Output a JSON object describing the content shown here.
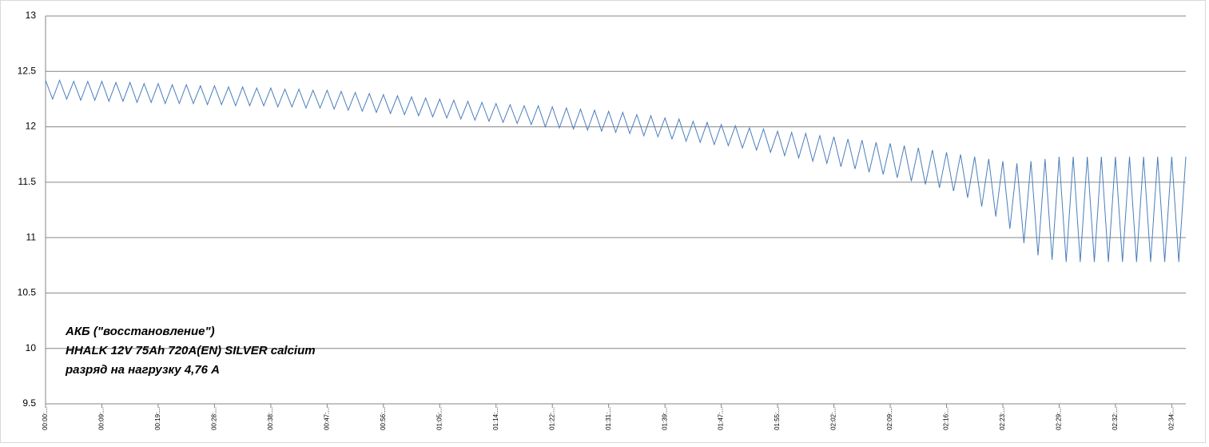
{
  "chart_data": {
    "type": "line",
    "annotation": [
      "АКБ (\"восстановление\")",
      "HHALK 12V 75Ah 720A(EN) SILVER calcium",
      "разряд на нагрузку 4,76 А"
    ],
    "categories": [
      "00:00:...",
      null,
      null,
      null,
      null,
      null,
      null,
      null,
      "00:09:...",
      null,
      null,
      null,
      null,
      null,
      null,
      null,
      "00:19:...",
      null,
      null,
      null,
      null,
      null,
      null,
      null,
      "00:28:...",
      null,
      null,
      null,
      null,
      null,
      null,
      null,
      "00:38:...",
      null,
      null,
      null,
      null,
      null,
      null,
      null,
      "00:47:...",
      null,
      null,
      null,
      null,
      null,
      null,
      null,
      "00:56:...",
      null,
      null,
      null,
      null,
      null,
      null,
      null,
      "01:05:...",
      null,
      null,
      null,
      null,
      null,
      null,
      null,
      "01:14:...",
      null,
      null,
      null,
      null,
      null,
      null,
      null,
      "01:22:...",
      null,
      null,
      null,
      null,
      null,
      null,
      null,
      "01:31:...",
      null,
      null,
      null,
      null,
      null,
      null,
      null,
      "01:39:...",
      null,
      null,
      null,
      null,
      null,
      null,
      null,
      "01:47:...",
      null,
      null,
      null,
      null,
      null,
      null,
      null,
      "01:55:...",
      null,
      null,
      null,
      null,
      null,
      null,
      null,
      "02:02:...",
      null,
      null,
      null,
      null,
      null,
      null,
      null,
      "02:09:...",
      null,
      null,
      null,
      null,
      null,
      null,
      null,
      "02:16:...",
      null,
      null,
      null,
      null,
      null,
      null,
      null,
      "02:23:...",
      null,
      null,
      null,
      null,
      null,
      null,
      null,
      "02:29:...",
      null,
      null,
      null,
      null,
      null,
      null,
      null,
      "02:32:...",
      null,
      null,
      null,
      null,
      null,
      null,
      null,
      "02:34:...",
      null,
      null
    ],
    "values": [
      12.42,
      12.25,
      12.42,
      12.25,
      12.41,
      12.24,
      12.41,
      12.24,
      12.41,
      12.23,
      12.4,
      12.23,
      12.4,
      12.22,
      12.39,
      12.22,
      12.39,
      12.21,
      12.38,
      12.21,
      12.38,
      12.21,
      12.37,
      12.2,
      12.37,
      12.2,
      12.36,
      12.19,
      12.36,
      12.19,
      12.35,
      12.19,
      12.35,
      12.18,
      12.34,
      12.18,
      12.34,
      12.17,
      12.33,
      12.17,
      12.33,
      12.16,
      12.32,
      12.15,
      12.31,
      12.14,
      12.3,
      12.13,
      12.29,
      12.12,
      12.28,
      12.11,
      12.27,
      12.1,
      12.26,
      12.09,
      12.25,
      12.08,
      12.24,
      12.07,
      12.23,
      12.06,
      12.22,
      12.05,
      12.21,
      12.04,
      12.2,
      12.03,
      12.19,
      12.02,
      12.19,
      12.0,
      12.18,
      11.99,
      12.17,
      11.98,
      12.16,
      11.97,
      12.15,
      11.96,
      12.14,
      11.95,
      12.13,
      11.94,
      12.11,
      11.92,
      12.1,
      11.91,
      12.08,
      11.89,
      12.07,
      11.87,
      12.05,
      11.86,
      12.04,
      11.84,
      12.02,
      11.83,
      12.01,
      11.81,
      11.99,
      11.79,
      11.98,
      11.77,
      11.96,
      11.74,
      11.95,
      11.72,
      11.94,
      11.69,
      11.92,
      11.67,
      11.91,
      11.64,
      11.89,
      11.62,
      11.88,
      11.59,
      11.86,
      11.57,
      11.85,
      11.54,
      11.83,
      11.51,
      11.81,
      11.48,
      11.79,
      11.45,
      11.77,
      11.42,
      11.75,
      11.36,
      11.73,
      11.28,
      11.71,
      11.19,
      11.69,
      11.08,
      11.67,
      10.95,
      11.69,
      10.84,
      11.71,
      10.8,
      11.73,
      10.78,
      11.73,
      10.78,
      11.73,
      10.78,
      11.73,
      10.78,
      11.73,
      10.78,
      11.73,
      10.78,
      11.73,
      10.78,
      11.73,
      10.78,
      11.73,
      10.78,
      11.73
    ],
    "color": "#4a7ebb",
    "ylim": [
      9.5,
      13
    ],
    "yticks": [
      9.5,
      10,
      10.5,
      11,
      11.5,
      12,
      12.5,
      13
    ],
    "grid": true
  }
}
